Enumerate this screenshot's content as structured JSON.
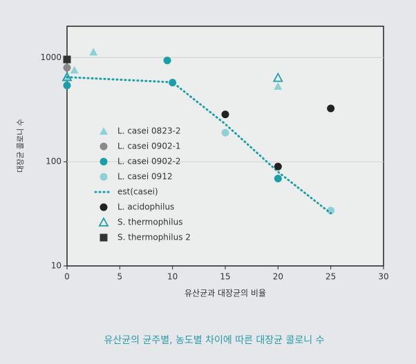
{
  "chart_data": {
    "type": "scatter",
    "caption": "유산균의 균주별, 농도별 차이에 따른 대장균 콜로니 수",
    "x_label": "유산균과 대장균의 비율",
    "y_label": "대장균 콜로니 수",
    "xlim": [
      0,
      30
    ],
    "xticks": [
      0,
      5,
      10,
      15,
      20,
      25,
      30
    ],
    "ylim": [
      10,
      2000
    ],
    "yticks": [
      10,
      100,
      1000
    ],
    "log_y": true,
    "grid": true,
    "legend": "center left",
    "series": [
      {
        "name": "L. casei 0823-2",
        "marker": "triangle",
        "color": "#8fd0d6",
        "x": [
          0,
          0.7,
          2.5,
          20
        ],
        "values": [
          660,
          760,
          1130,
          530
        ]
      },
      {
        "name": "L. casei 0902-1",
        "marker": "circle",
        "color": "#8a8a8a",
        "x": [
          0
        ],
        "values": [
          800
        ]
      },
      {
        "name": "L. casei 0902-2",
        "marker": "circle",
        "color": "#1c9ea8",
        "x": [
          0,
          9.5,
          10,
          20
        ],
        "values": [
          540,
          940,
          575,
          69
        ]
      },
      {
        "name": "L. casei 0912",
        "marker": "circle",
        "color": "#8fd0d6",
        "x": [
          15,
          25
        ],
        "values": [
          190,
          34
        ]
      },
      {
        "name": "est(casei)",
        "marker": "dotted-line",
        "color": "#1c9ea8",
        "x": [
          0,
          10,
          15,
          20,
          25
        ],
        "values": [
          650,
          580,
          230,
          80,
          32
        ]
      },
      {
        "name": "L. acidophilus",
        "marker": "circle",
        "color": "#222222",
        "x": [
          15,
          20,
          25
        ],
        "values": [
          285,
          90,
          325
        ]
      },
      {
        "name": "S. thermophilus",
        "marker": "triangle-open",
        "color": "#1c9ea8",
        "x": [
          0,
          20
        ],
        "values": [
          650,
          640
        ]
      },
      {
        "name": "S. thermophilus 2",
        "marker": "square",
        "color": "#333333",
        "x": [
          0
        ],
        "values": [
          960
        ]
      }
    ]
  }
}
